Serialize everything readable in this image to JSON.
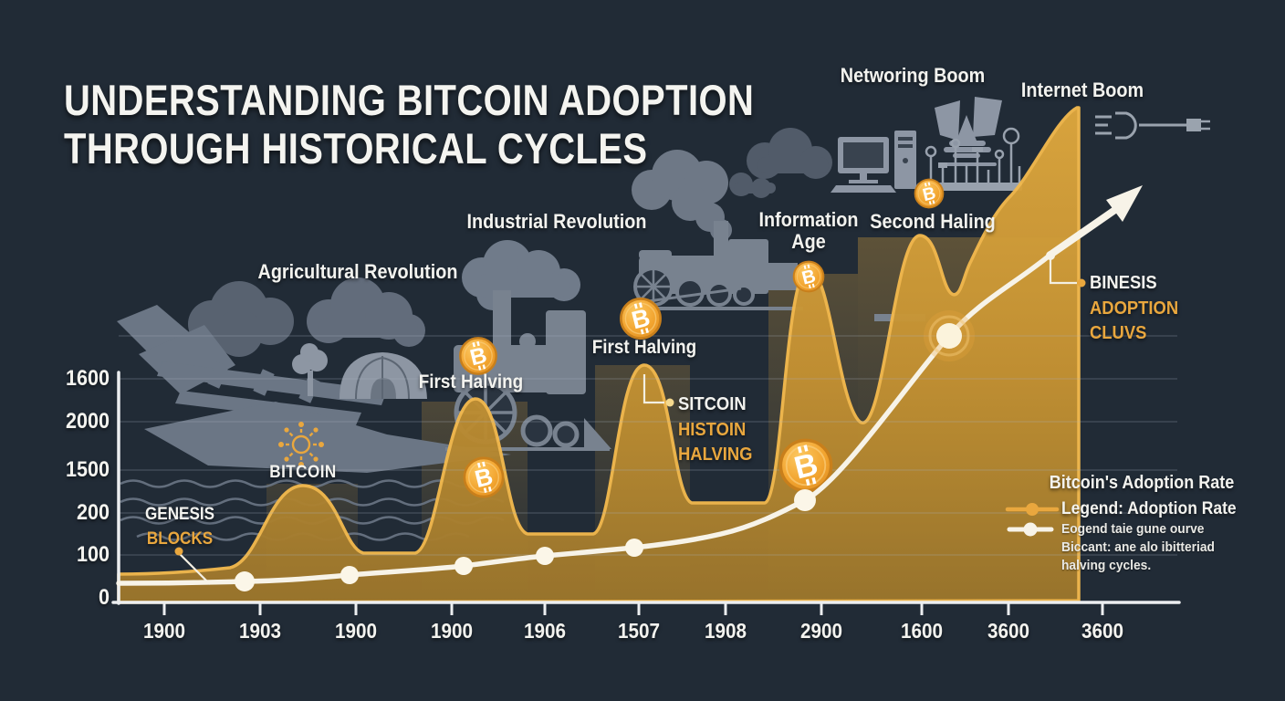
{
  "title": {
    "line1": "UNDERSTANDING BITCOIN ADOPTION",
    "line2": "THROUGH HISTORICAL CYCLES"
  },
  "era_labels": {
    "agricultural": "Agricultural Revolution",
    "industrial": "Industrial Revolution",
    "information_line1": "Information",
    "information_line2": "Age",
    "networking": "Networing Boom",
    "second_halving": "Second Haling",
    "internet": "Internet Boom"
  },
  "annotations": {
    "first_halving_1": "First Halving",
    "first_halving_2": "First Halving",
    "bitcoin_label": "BITCOIN",
    "genesis_line1": "GENESIS",
    "genesis_line2": "BLOCKS",
    "sitcoin_line1": "SITCOIN",
    "sitcoin_line2": "HISTOIN",
    "sitcoin_line3": "HALVING",
    "binesis_line1": "BINESIS",
    "binesis_line2": "ADOPTION",
    "binesis_line3": "CLUVS"
  },
  "legend": {
    "heading": "Bitcoin's Adoption Rate",
    "row1_label": "Legend: Adoption Rate",
    "row2_line1": "Eogend taie gune ourve",
    "row2_line2": "Biccant: ane alo ibitteriad",
    "row2_line3": "halving cycles."
  },
  "icons": {
    "coin": "bitcoin-coin",
    "starburst": "bitcoin-starburst-icon",
    "plug": "power-plug-icon",
    "arrow": "growth-arrow-icon",
    "scenes": [
      "plow-hands",
      "clouds",
      "tree",
      "dome-hut",
      "steam-locomotive-small",
      "steam-locomotive-large",
      "desktop-computer",
      "stadium-crowd",
      "circuit-board"
    ]
  },
  "colors": {
    "background": "#212b36",
    "gold_area": "#d9a23a",
    "gold_stroke": "#f3b94d",
    "accent_orange": "#e9a73e",
    "white_line": "#f7f3e8",
    "silhouette_gray": "#717c8b"
  },
  "chart_data": {
    "type": "area",
    "title": "Understanding Bitcoin Adoption Through Historical Cycles",
    "xlabel": "",
    "ylabel": "",
    "x_tick_labels": [
      "1900",
      "1903",
      "1900",
      "1900",
      "1906",
      "1507",
      "1908",
      "2900",
      "1600",
      "3600",
      "3600"
    ],
    "y_tick_labels": [
      "1600",
      "2000",
      "1500",
      "200",
      "100",
      "0"
    ],
    "grid": true,
    "legend_position": "bottom-right",
    "series": [
      {
        "name": "Bitcoin adoption cycles (gold area)",
        "type": "area",
        "color": "#d9a23a",
        "values_percent_of_max_at_x_ticks": [
          6,
          11,
          10,
          33,
          14,
          48,
          20,
          66,
          74,
          82,
          0
        ],
        "peaks_percent_of_max": [
          24,
          41,
          48,
          67,
          74,
          100
        ]
      },
      {
        "name": "Adoption Rate (white line)",
        "type": "line",
        "color": "#f7f3e8",
        "values_percent_of_max_at_x_ticks": [
          4,
          4,
          6,
          7,
          9,
          11,
          14,
          22,
          47,
          63,
          77
        ]
      }
    ]
  }
}
